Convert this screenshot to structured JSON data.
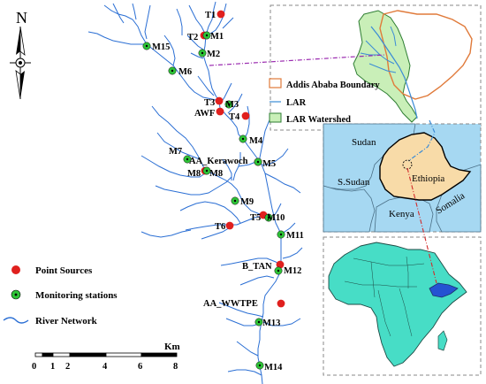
{
  "north": "N",
  "legend": {
    "point_sources": "Point Sources",
    "monitoring_stations": "Monitoring stations",
    "river_network": "River Network",
    "point_color": "#e0201e",
    "station_color": "#2ec437",
    "river_color": "#2b6fd4"
  },
  "scale": {
    "unit": "Km",
    "ticks": [
      "0",
      "1",
      "2",
      "4",
      "6",
      "8"
    ]
  },
  "point_sources": [
    "T1",
    "T2",
    "T3",
    "AWF",
    "T4",
    "AA_Kerawoch",
    "M8",
    "T5",
    "T6",
    "B_TAN",
    "AA_WWTPE"
  ],
  "stations": [
    "M1",
    "M2",
    "M3",
    "M4",
    "M5",
    "M6",
    "M7",
    "M8",
    "M9",
    "M10",
    "M11",
    "M12",
    "M13",
    "M14",
    "M15"
  ],
  "inset_watershed": {
    "legend_boundary": "Addis Ababa Boundary",
    "legend_lar": "LAR",
    "legend_watershed": "LAR Watershed",
    "boundary_color": "#e07a3a",
    "lar_color": "#3a8bd6",
    "watershed_color": "#c9efb8"
  },
  "inset_ethiopia": {
    "labels": [
      "Sudan",
      "S.Sudan",
      "Ethiopia",
      "Kenya",
      "Somalia"
    ],
    "sea_color": "#a6d8f2",
    "ethiopia_color": "#f8dba8"
  },
  "inset_africa": {
    "land_color": "#47ddc6",
    "ethiopia_color": "#2553d2"
  }
}
